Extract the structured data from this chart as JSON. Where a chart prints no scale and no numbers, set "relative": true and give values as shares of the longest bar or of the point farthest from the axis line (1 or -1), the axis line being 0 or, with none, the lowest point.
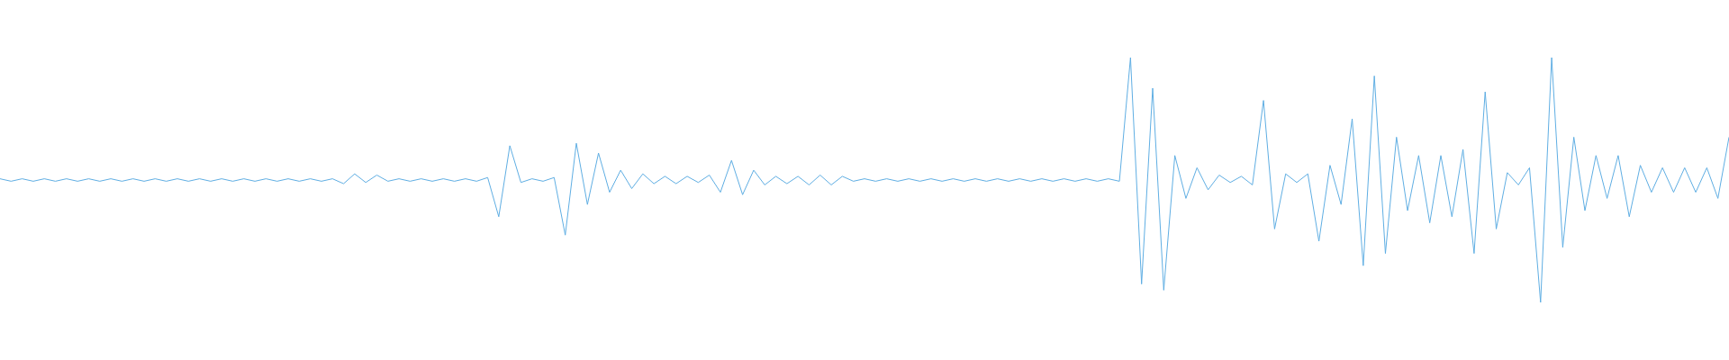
{
  "chart_data": {
    "type": "line",
    "relative": true,
    "categories": [
      null,
      null,
      null,
      null,
      null,
      null,
      null,
      null,
      null,
      null,
      null,
      null,
      null,
      null,
      null,
      null,
      null,
      null,
      null,
      null,
      null,
      null,
      null,
      null,
      null,
      null,
      null,
      null,
      null,
      null,
      null,
      null,
      null,
      null,
      null,
      null,
      null,
      null,
      null,
      null,
      null,
      null,
      null,
      null,
      null,
      null,
      null,
      null,
      null,
      null,
      null,
      null,
      null,
      null,
      null,
      null,
      null,
      null,
      null,
      null,
      null,
      null,
      null,
      null,
      null,
      null,
      null,
      null,
      null,
      null,
      null,
      null,
      null,
      null,
      null,
      null,
      null,
      null,
      null,
      null,
      null,
      null,
      null,
      null,
      null,
      null,
      null,
      null,
      null,
      null,
      null,
      null,
      null,
      null,
      null,
      null,
      null,
      null,
      null,
      null,
      null,
      null,
      null,
      null,
      null,
      null,
      null,
      null,
      null,
      null,
      null,
      null,
      null,
      null,
      null,
      null,
      null,
      null,
      null,
      null,
      null,
      null,
      null,
      null,
      null,
      null,
      null,
      null,
      null,
      null,
      null,
      null,
      null,
      null,
      null,
      null,
      null,
      null,
      null,
      null,
      null,
      null,
      null,
      null,
      null,
      null,
      null,
      null,
      null,
      null,
      null,
      null,
      null,
      null,
      null,
      null,
      null
    ],
    "series": [
      {
        "color": "#5faee3",
        "values": [
          0.505,
          0.495,
          0.505,
          0.495,
          0.505,
          0.495,
          0.505,
          0.495,
          0.505,
          0.495,
          0.505,
          0.495,
          0.505,
          0.495,
          0.505,
          0.495,
          0.505,
          0.495,
          0.505,
          0.495,
          0.505,
          0.495,
          0.505,
          0.495,
          0.505,
          0.495,
          0.505,
          0.495,
          0.505,
          0.495,
          0.505,
          0.485,
          0.525,
          0.49,
          0.52,
          0.495,
          0.505,
          0.495,
          0.505,
          0.495,
          0.505,
          0.495,
          0.505,
          0.495,
          0.51,
          0.35,
          0.64,
          0.49,
          0.505,
          0.495,
          0.51,
          0.275,
          0.65,
          0.4,
          0.61,
          0.45,
          0.54,
          0.465,
          0.525,
          0.485,
          0.515,
          0.485,
          0.515,
          0.49,
          0.52,
          0.45,
          0.58,
          0.44,
          0.54,
          0.48,
          0.515,
          0.485,
          0.515,
          0.48,
          0.52,
          0.48,
          0.515,
          0.495,
          0.505,
          0.495,
          0.505,
          0.495,
          0.505,
          0.495,
          0.505,
          0.495,
          0.505,
          0.495,
          0.505,
          0.495,
          0.505,
          0.495,
          0.505,
          0.495,
          0.505,
          0.495,
          0.505,
          0.495,
          0.505,
          0.495,
          0.505,
          0.495,
          1,
          0.075,
          0.875,
          0.05,
          0.6,
          0.425,
          0.55,
          0.46,
          0.52,
          0.49,
          0.515,
          0.48,
          0.825,
          0.3,
          0.525,
          0.49,
          0.525,
          0.25,
          0.56,
          0.4,
          0.75,
          0.15,
          0.925,
          0.2,
          0.675,
          0.375,
          0.6,
          0.325,
          0.6,
          0.35,
          0.625,
          0.2,
          0.86,
          0.3,
          0.53,
          0.48,
          0.55,
          0,
          1,
          0.225,
          0.675,
          0.375,
          0.6,
          0.425,
          0.6,
          0.35,
          0.56,
          0.45,
          0.55,
          0.45,
          0.55,
          0.45,
          0.55,
          0.425,
          0.675
        ]
      }
    ]
  }
}
